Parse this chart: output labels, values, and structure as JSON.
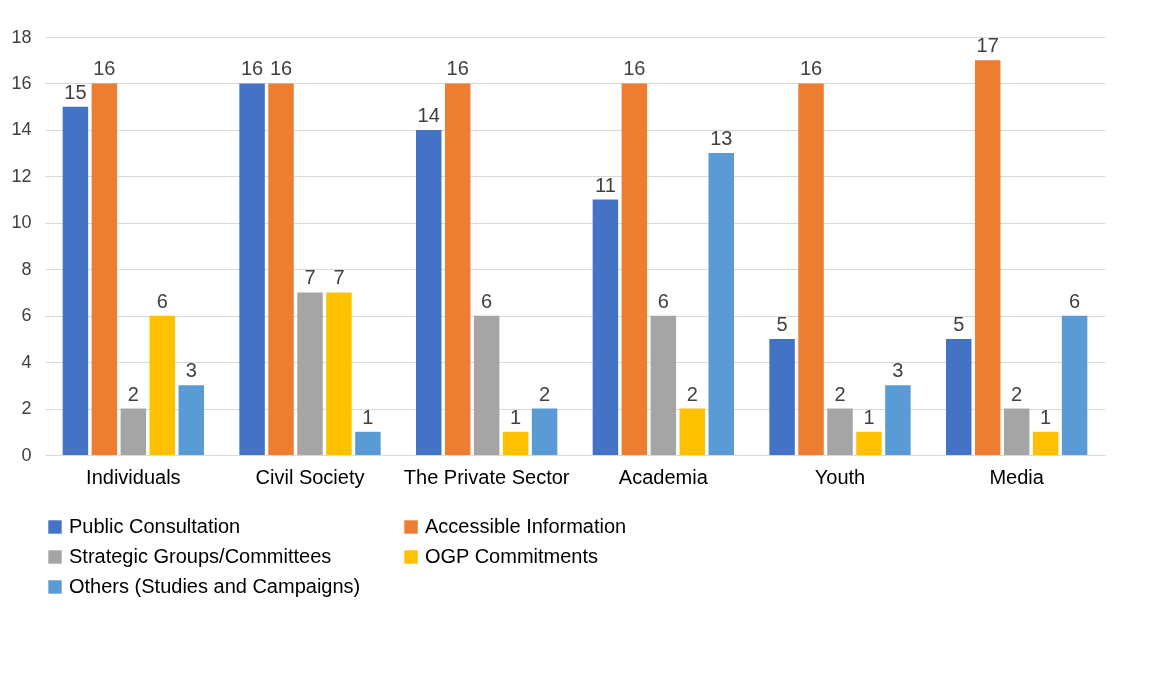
{
  "chart_data": {
    "type": "bar",
    "categories": [
      "Individuals",
      "Civil Society",
      "The Private Sector",
      "Academia",
      "Youth",
      "Media"
    ],
    "series": [
      {
        "name": "Public Consultation",
        "color": "#4472c4",
        "values": [
          15,
          16,
          14,
          11,
          5,
          5
        ]
      },
      {
        "name": "Accessible Information",
        "color": "#ed7d31",
        "values": [
          16,
          16,
          16,
          16,
          16,
          17
        ]
      },
      {
        "name": "Strategic Groups/Committees",
        "color": "#a5a5a5",
        "values": [
          2,
          7,
          6,
          6,
          2,
          2
        ]
      },
      {
        "name": "OGP Commitments",
        "color": "#ffc000",
        "values": [
          6,
          7,
          1,
          2,
          1,
          1
        ]
      },
      {
        "name": "Others (Studies and Campaigns)",
        "color": "#5b9bd5",
        "values": [
          3,
          1,
          2,
          13,
          3,
          6
        ]
      }
    ],
    "ylim": [
      0,
      18
    ],
    "yticks": [
      0,
      2,
      4,
      6,
      8,
      10,
      12,
      14,
      16,
      18
    ],
    "grid": "y",
    "legend": "bottom",
    "data_labels": true
  }
}
